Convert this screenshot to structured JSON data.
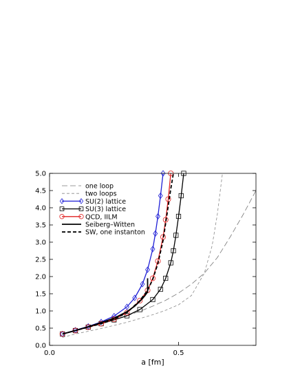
{
  "chart_data": {
    "type": "line",
    "xlabel": "a [fm]",
    "ylabel": "",
    "xlim": [
      0.0,
      0.8
    ],
    "ylim": [
      0.0,
      5.0
    ],
    "x_ticks": [
      {
        "value": 0.0,
        "label": "0.0"
      },
      {
        "value": 0.5,
        "label": "0.5"
      }
    ],
    "y_ticks": [
      {
        "value": 0.0,
        "label": "0.0"
      },
      {
        "value": 0.5,
        "label": "0.5"
      },
      {
        "value": 1.0,
        "label": "1.0"
      },
      {
        "value": 1.5,
        "label": "1.5"
      },
      {
        "value": 2.0,
        "label": "2.0"
      },
      {
        "value": 2.5,
        "label": "2.5"
      },
      {
        "value": 3.0,
        "label": "3.0"
      },
      {
        "value": 3.5,
        "label": "3.5"
      },
      {
        "value": 4.0,
        "label": "4.0"
      },
      {
        "value": 4.5,
        "label": "4.5"
      },
      {
        "value": 5.0,
        "label": "5.0"
      }
    ],
    "grid": false,
    "legend_position": "top-left",
    "series": [
      {
        "name": "one loop",
        "style": "dash-long",
        "color": "#777777",
        "marker": "none",
        "x": [
          0.05,
          0.1,
          0.15,
          0.2,
          0.25,
          0.3,
          0.35,
          0.4,
          0.45,
          0.5,
          0.55,
          0.6,
          0.65,
          0.7,
          0.75,
          0.8
        ],
        "y": [
          0.33,
          0.43,
          0.53,
          0.63,
          0.74,
          0.86,
          0.99,
          1.14,
          1.31,
          1.52,
          1.78,
          2.1,
          2.55,
          3.15,
          3.8,
          4.5
        ]
      },
      {
        "name": "two loops",
        "style": "dash",
        "color": "#888888",
        "marker": "none",
        "x": [
          0.05,
          0.1,
          0.15,
          0.2,
          0.25,
          0.3,
          0.35,
          0.4,
          0.45,
          0.5,
          0.55,
          0.6,
          0.63,
          0.65,
          0.67
        ],
        "y": [
          0.23,
          0.33,
          0.41,
          0.49,
          0.58,
          0.67,
          0.78,
          0.89,
          1.02,
          1.18,
          1.45,
          2.1,
          2.9,
          3.8,
          5.0
        ]
      },
      {
        "name": "SU(2)  lattice",
        "style": "solid",
        "color": "#1f1fd6",
        "marker": "diamond",
        "x": [
          0.05,
          0.1,
          0.15,
          0.2,
          0.25,
          0.3,
          0.33,
          0.36,
          0.38,
          0.4,
          0.41,
          0.42,
          0.43,
          0.44
        ],
        "y": [
          0.33,
          0.44,
          0.55,
          0.68,
          0.85,
          1.12,
          1.38,
          1.78,
          2.2,
          2.8,
          3.25,
          3.75,
          4.35,
          5.0
        ]
      },
      {
        "name": "SU(3) lattice",
        "style": "solid",
        "color": "#000000",
        "marker": "square",
        "x": [
          0.05,
          0.1,
          0.15,
          0.2,
          0.25,
          0.3,
          0.35,
          0.4,
          0.43,
          0.45,
          0.47,
          0.48,
          0.49,
          0.5,
          0.51,
          0.52
        ],
        "y": [
          0.33,
          0.43,
          0.53,
          0.63,
          0.74,
          0.86,
          1.04,
          1.33,
          1.63,
          1.95,
          2.4,
          2.75,
          3.2,
          3.75,
          4.35,
          5.0
        ]
      },
      {
        "name": "QCD, IILM",
        "style": "solid",
        "color": "#e02020",
        "marker": "circle",
        "x": [
          0.05,
          0.1,
          0.15,
          0.2,
          0.25,
          0.3,
          0.35,
          0.38,
          0.4,
          0.42,
          0.44,
          0.45,
          0.46,
          0.47
        ],
        "y": [
          0.33,
          0.43,
          0.53,
          0.63,
          0.76,
          0.95,
          1.3,
          1.6,
          1.95,
          2.45,
          3.15,
          3.65,
          4.25,
          5.0
        ]
      },
      {
        "name": "Seiberg–Witten",
        "style": "solid-thick",
        "color": "#000000",
        "marker": "none",
        "x": [
          0.05,
          0.1,
          0.15,
          0.2,
          0.25,
          0.3,
          0.33,
          0.35,
          0.36,
          0.37,
          0.375,
          0.38,
          0.38
        ],
        "y": [
          0.33,
          0.43,
          0.54,
          0.66,
          0.79,
          0.98,
          1.14,
          1.28,
          1.36,
          1.45,
          1.5,
          1.55,
          1.95
        ]
      },
      {
        "name": "SW, one instanton",
        "style": "dash-thick",
        "color": "#000000",
        "marker": "none",
        "x": [
          0.05,
          0.1,
          0.15,
          0.2,
          0.25,
          0.3,
          0.35,
          0.38,
          0.4,
          0.42,
          0.44,
          0.46,
          0.47,
          0.48
        ],
        "y": [
          0.33,
          0.43,
          0.53,
          0.63,
          0.76,
          0.95,
          1.3,
          1.6,
          1.92,
          2.38,
          3.05,
          4.05,
          4.55,
          5.0
        ]
      }
    ]
  }
}
